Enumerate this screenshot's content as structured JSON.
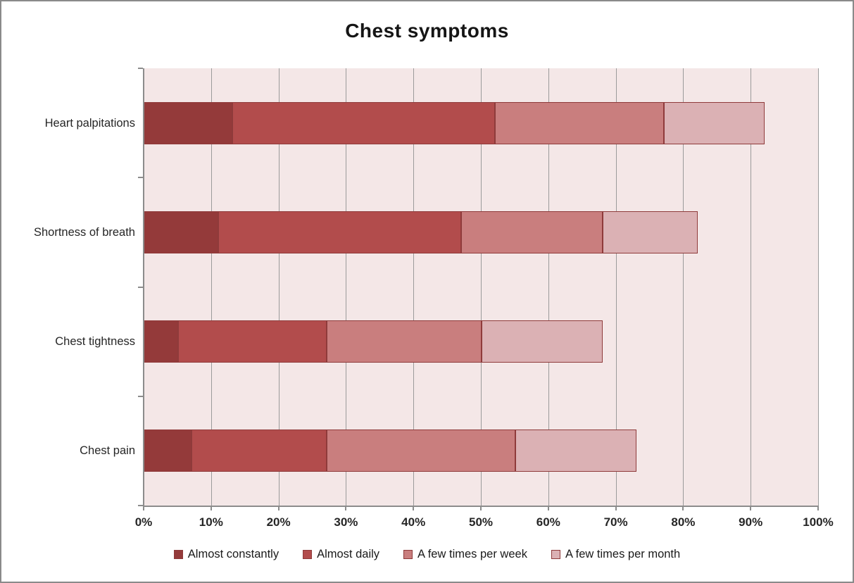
{
  "chart_data": {
    "type": "bar",
    "orientation": "horizontal",
    "stacked": true,
    "title": "Chest symptoms",
    "categories": [
      "Heart palpitations",
      "Shortness of breath",
      "Chest tightness",
      "Chest pain"
    ],
    "series": [
      {
        "name": "Almost constantly",
        "color": "#943a3a",
        "values": [
          13,
          11,
          5,
          7
        ]
      },
      {
        "name": "Almost daily",
        "color": "#b24c4c",
        "values": [
          39,
          36,
          22,
          20
        ]
      },
      {
        "name": "A few times per week",
        "color": "#c97e7e",
        "values": [
          25,
          21,
          23,
          28
        ]
      },
      {
        "name": "A few times per month",
        "color": "#dbb1b4",
        "values": [
          15,
          14,
          18,
          18
        ]
      }
    ],
    "stacked_totals": [
      92,
      82,
      68,
      73
    ],
    "x_axis": {
      "min": 0,
      "max": 100,
      "tick_step": 10,
      "tick_labels": [
        "0%",
        "10%",
        "20%",
        "30%",
        "40%",
        "50%",
        "60%",
        "70%",
        "80%",
        "90%",
        "100%"
      ]
    },
    "legend_position": "bottom",
    "grid": true,
    "colors": {
      "plot_background": "#f4e7e7",
      "gridline": "#9b9b9b",
      "axis": "#8c8c8c",
      "segment_border": "#8f3b3b",
      "frame_border": "#8a8a8a",
      "title_text": "#151515",
      "label_text": "#262626"
    }
  }
}
